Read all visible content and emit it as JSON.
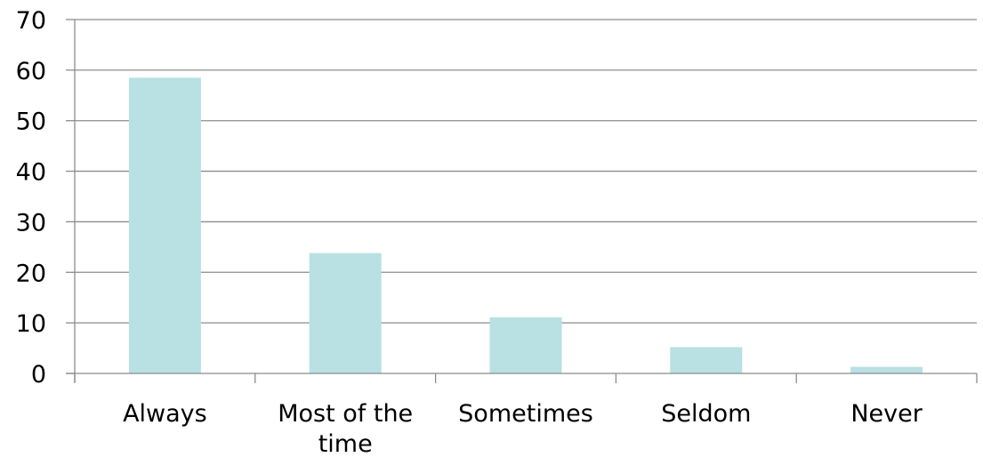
{
  "chart_data": {
    "type": "bar",
    "categories": [
      "Always",
      "Most of the time",
      "Sometimes",
      "Seldom",
      "Never"
    ],
    "category_label_lines": [
      [
        "Always"
      ],
      [
        "Most of the",
        "time"
      ],
      [
        "Sometimes"
      ],
      [
        "Seldom"
      ],
      [
        "Never"
      ]
    ],
    "values": [
      58.5,
      23.8,
      11.1,
      5.2,
      1.3
    ],
    "yticks": [
      0,
      10,
      20,
      30,
      40,
      50,
      60,
      70
    ],
    "ylim": [
      0,
      70
    ],
    "grid": true,
    "legend": "none",
    "title": "",
    "xlabel": "",
    "ylabel": "",
    "bar_color": "#b9e0e3",
    "grid_color": "#8c8c8c",
    "axis_color": "#8c8c8c"
  }
}
